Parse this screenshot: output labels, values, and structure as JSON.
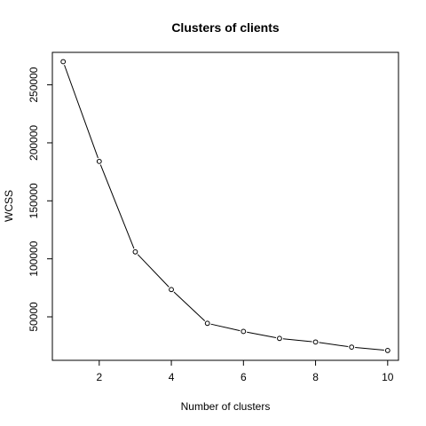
{
  "chart_data": {
    "type": "line",
    "title": "Clusters of clients",
    "xlabel": "Number of clusters",
    "ylabel": "WCSS",
    "x": [
      1,
      2,
      3,
      4,
      5,
      6,
      7,
      8,
      9,
      10
    ],
    "series": [
      {
        "name": "WCSS",
        "values": [
          269981,
          184000,
          106000,
          73500,
          44400,
          37400,
          31400,
          28300,
          23900,
          21000
        ]
      }
    ],
    "xlim": [
      0.7,
      10.3
    ],
    "ylim": [
      12500,
      278000
    ],
    "x_ticks": [
      2,
      4,
      6,
      8,
      10
    ],
    "y_ticks": [
      50000,
      100000,
      150000,
      200000,
      250000
    ],
    "x_tick_labels": [
      "2",
      "4",
      "6",
      "8",
      "10"
    ],
    "y_tick_labels": [
      "50000",
      "100000",
      "150000",
      "200000",
      "250000"
    ],
    "marker": "open-circle",
    "line_color": "#000000",
    "grid": false
  }
}
